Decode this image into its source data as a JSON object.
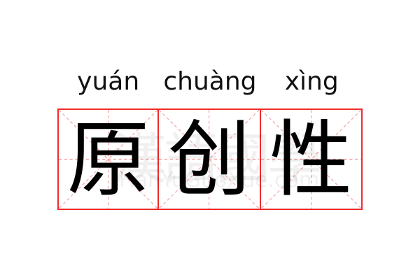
{
  "pinyin": [
    "yuán",
    "chuàng",
    "xìng"
  ],
  "characters": [
    "原",
    "创",
    "性"
  ],
  "watermark": {
    "chinese": "漢語國學",
    "latin": "HanYuGuoXue.com"
  },
  "colors": {
    "grid_border": "#f02a2a",
    "guide_lines": "#f5a0a0",
    "text": "#000000"
  }
}
